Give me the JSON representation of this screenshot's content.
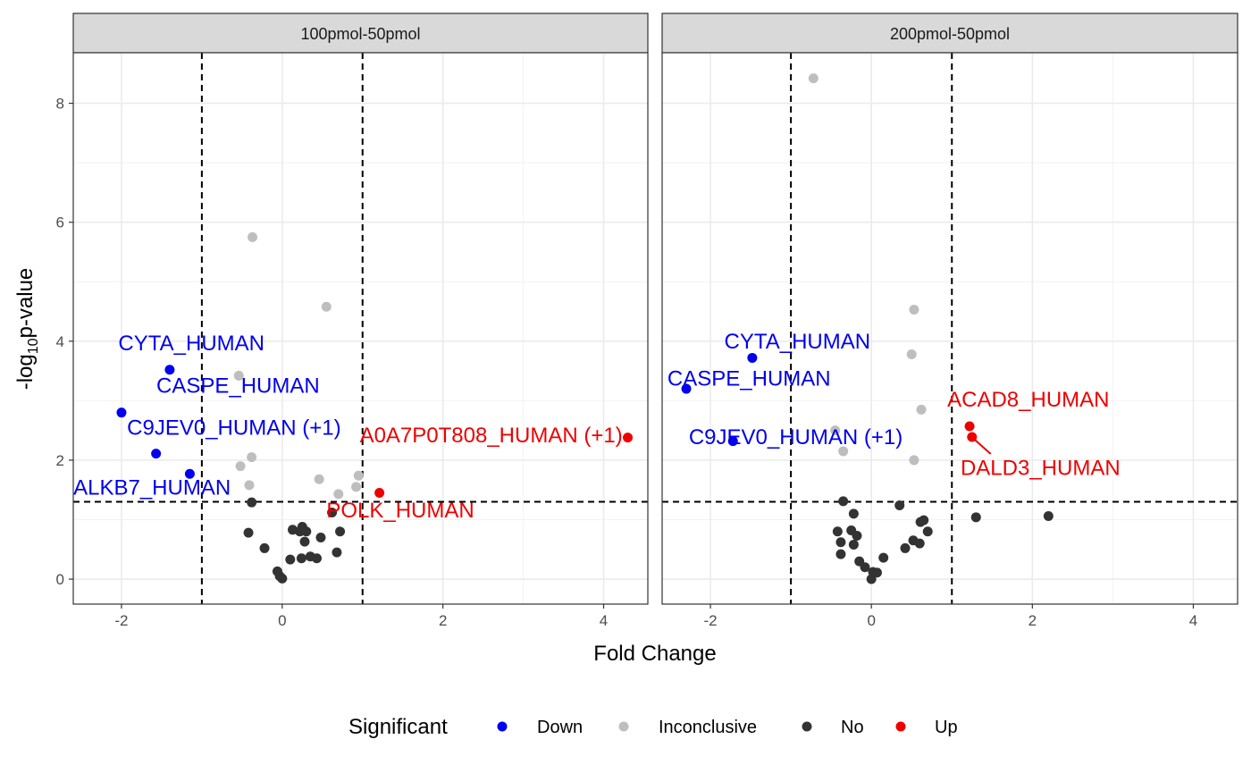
{
  "chart_data": {
    "type": "scatter",
    "xlabel": "Fold Change",
    "ylabel": {
      "prefix": "-log",
      "sub": "10",
      "suffix": "p-value"
    },
    "xlim": [
      -2.6,
      4.55
    ],
    "ylim": [
      -0.42,
      8.85
    ],
    "x_ticks": [
      -2,
      0,
      2,
      4
    ],
    "y_ticks": [
      0,
      2,
      4,
      6,
      8
    ],
    "grid": true,
    "thresholds": {
      "x": [
        -1,
        1
      ],
      "y": 1.3
    },
    "colors": {
      "Down": "#0000ee",
      "Inconclusive": "#bebebe",
      "No": "#333333",
      "Up": "#ee0000"
    },
    "legend": {
      "title": "Significant",
      "position": "bottom",
      "items": [
        "Down",
        "Inconclusive",
        "No",
        "Up"
      ]
    },
    "panels": [
      {
        "title": "100pmol-50pmol",
        "points": [
          {
            "x": -1.4,
            "y": 3.52,
            "cat": "Down"
          },
          {
            "x": -2.0,
            "y": 2.8,
            "cat": "Down"
          },
          {
            "x": -1.57,
            "y": 2.11,
            "cat": "Down"
          },
          {
            "x": -1.15,
            "y": 1.77,
            "cat": "Down"
          },
          {
            "x": 4.3,
            "y": 2.38,
            "cat": "Up"
          },
          {
            "x": 1.21,
            "y": 1.45,
            "cat": "Up"
          },
          {
            "x": -0.37,
            "y": 5.75,
            "cat": "Inconclusive"
          },
          {
            "x": 0.55,
            "y": 4.58,
            "cat": "Inconclusive"
          },
          {
            "x": -0.54,
            "y": 3.42,
            "cat": "Inconclusive"
          },
          {
            "x": -0.38,
            "y": 2.05,
            "cat": "Inconclusive"
          },
          {
            "x": -0.52,
            "y": 1.9,
            "cat": "Inconclusive"
          },
          {
            "x": 0.46,
            "y": 1.68,
            "cat": "Inconclusive"
          },
          {
            "x": 0.95,
            "y": 1.74,
            "cat": "Inconclusive"
          },
          {
            "x": 0.92,
            "y": 1.55,
            "cat": "Inconclusive"
          },
          {
            "x": 0.7,
            "y": 1.43,
            "cat": "Inconclusive"
          },
          {
            "x": -0.41,
            "y": 1.58,
            "cat": "Inconclusive"
          },
          {
            "x": -0.38,
            "y": 1.29,
            "cat": "No"
          },
          {
            "x": 0.62,
            "y": 1.12,
            "cat": "No"
          },
          {
            "x": -0.42,
            "y": 0.78,
            "cat": "No"
          },
          {
            "x": -0.22,
            "y": 0.52,
            "cat": "No"
          },
          {
            "x": 0.13,
            "y": 0.83,
            "cat": "No"
          },
          {
            "x": 0.25,
            "y": 0.88,
            "cat": "No"
          },
          {
            "x": 0.22,
            "y": 0.8,
            "cat": "No"
          },
          {
            "x": 0.3,
            "y": 0.8,
            "cat": "No"
          },
          {
            "x": 0.28,
            "y": 0.63,
            "cat": "No"
          },
          {
            "x": 0.48,
            "y": 0.7,
            "cat": "No"
          },
          {
            "x": 0.72,
            "y": 0.8,
            "cat": "No"
          },
          {
            "x": 0.1,
            "y": 0.33,
            "cat": "No"
          },
          {
            "x": 0.24,
            "y": 0.35,
            "cat": "No"
          },
          {
            "x": 0.35,
            "y": 0.38,
            "cat": "No"
          },
          {
            "x": 0.43,
            "y": 0.35,
            "cat": "No"
          },
          {
            "x": 0.68,
            "y": 0.45,
            "cat": "No"
          },
          {
            "x": -0.06,
            "y": 0.13,
            "cat": "No"
          },
          {
            "x": -0.03,
            "y": 0.05,
            "cat": "No"
          },
          {
            "x": 0.0,
            "y": 0.01,
            "cat": "No"
          }
        ],
        "labels": [
          {
            "text": "CYTA_HUMAN",
            "x": -1.13,
            "y": 3.85,
            "cat": "Up_none",
            "color": "Down"
          },
          {
            "text": "CASPE_HUMAN",
            "x": -0.55,
            "y": 3.13,
            "color": "Down"
          },
          {
            "text": "C9JEV0_HUMAN (+1)",
            "x": -0.6,
            "y": 2.43,
            "color": "Down"
          },
          {
            "text": "ALKB7_HUMAN",
            "x": -1.62,
            "y": 1.42,
            "color": "Down"
          },
          {
            "text": "A0A7P0T808_HUMAN (+1)",
            "x": 2.6,
            "y": 2.3,
            "color": "Up"
          },
          {
            "text": "POLK_HUMAN",
            "x": 1.47,
            "y": 1.04,
            "color": "Up"
          }
        ]
      },
      {
        "title": "200pmol-50pmol",
        "points": [
          {
            "x": -1.48,
            "y": 3.72,
            "cat": "Down"
          },
          {
            "x": -2.3,
            "y": 3.2,
            "cat": "Down"
          },
          {
            "x": -1.72,
            "y": 2.32,
            "cat": "Down"
          },
          {
            "x": 1.22,
            "y": 2.57,
            "cat": "Up"
          },
          {
            "x": 1.25,
            "y": 2.39,
            "cat": "Up"
          },
          {
            "x": -0.72,
            "y": 8.42,
            "cat": "Inconclusive"
          },
          {
            "x": 0.53,
            "y": 4.53,
            "cat": "Inconclusive"
          },
          {
            "x": 0.5,
            "y": 3.78,
            "cat": "Inconclusive"
          },
          {
            "x": 0.62,
            "y": 2.85,
            "cat": "Inconclusive"
          },
          {
            "x": -0.45,
            "y": 2.5,
            "cat": "Inconclusive"
          },
          {
            "x": -0.35,
            "y": 2.15,
            "cat": "Inconclusive"
          },
          {
            "x": 0.53,
            "y": 2.0,
            "cat": "Inconclusive"
          },
          {
            "x": -0.35,
            "y": 1.31,
            "cat": "No"
          },
          {
            "x": 0.35,
            "y": 1.24,
            "cat": "No"
          },
          {
            "x": -0.22,
            "y": 1.1,
            "cat": "No"
          },
          {
            "x": 0.65,
            "y": 0.99,
            "cat": "No"
          },
          {
            "x": 0.61,
            "y": 0.96,
            "cat": "No"
          },
          {
            "x": 1.3,
            "y": 1.04,
            "cat": "No"
          },
          {
            "x": 2.2,
            "y": 1.06,
            "cat": "No"
          },
          {
            "x": -0.42,
            "y": 0.8,
            "cat": "No"
          },
          {
            "x": -0.25,
            "y": 0.82,
            "cat": "No"
          },
          {
            "x": -0.18,
            "y": 0.73,
            "cat": "No"
          },
          {
            "x": 0.7,
            "y": 0.8,
            "cat": "No"
          },
          {
            "x": -0.38,
            "y": 0.62,
            "cat": "No"
          },
          {
            "x": -0.22,
            "y": 0.58,
            "cat": "No"
          },
          {
            "x": 0.52,
            "y": 0.65,
            "cat": "No"
          },
          {
            "x": 0.6,
            "y": 0.6,
            "cat": "No"
          },
          {
            "x": 0.42,
            "y": 0.52,
            "cat": "No"
          },
          {
            "x": -0.38,
            "y": 0.42,
            "cat": "No"
          },
          {
            "x": -0.15,
            "y": 0.3,
            "cat": "No"
          },
          {
            "x": 0.15,
            "y": 0.36,
            "cat": "No"
          },
          {
            "x": -0.08,
            "y": 0.2,
            "cat": "No"
          },
          {
            "x": 0.02,
            "y": 0.12,
            "cat": "No"
          },
          {
            "x": 0.07,
            "y": 0.11,
            "cat": "No"
          },
          {
            "x": 0.0,
            "y": 0.0,
            "cat": "No"
          }
        ],
        "labels": [
          {
            "text": "CYTA_HUMAN",
            "x": -0.92,
            "y": 3.88,
            "color": "Down"
          },
          {
            "text": "CASPE_HUMAN",
            "x": -1.52,
            "y": 3.25,
            "color": "Down"
          },
          {
            "text": "C9JEV0_HUMAN (+1)",
            "x": -0.94,
            "y": 2.27,
            "color": "Down"
          },
          {
            "text": "ACAD8_HUMAN",
            "x": 1.95,
            "y": 2.9,
            "color": "Up"
          },
          {
            "text": "DALD3_HUMAN",
            "x": 2.1,
            "y": 1.75,
            "color": "Up"
          }
        ]
      }
    ]
  }
}
